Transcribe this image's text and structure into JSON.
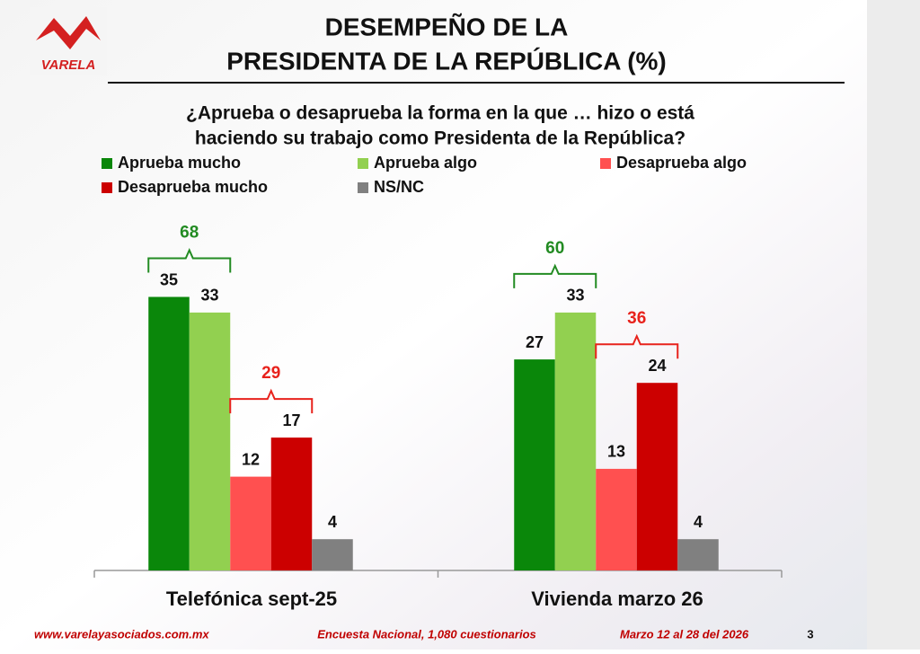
{
  "logo": "VARELA",
  "chart_data": {
    "type": "bar",
    "title": [
      "DESEMPEÑO DE LA",
      "PRESIDENTA DE LA REPÚBLICA (%)"
    ],
    "subtitle": [
      "¿Aprueba o desaprueba la forma en la que … hizo o está",
      "haciendo su trabajo como Presidenta de la República?"
    ],
    "categories": [
      "Telefónica sept-25",
      "Vivienda marzo 26"
    ],
    "series": [
      {
        "name": "Aprueba mucho",
        "color": "#0a870a",
        "values": [
          35,
          27
        ]
      },
      {
        "name": "Aprueba algo",
        "color": "#92d050",
        "values": [
          33,
          33
        ]
      },
      {
        "name": "Desaprueba algo",
        "color": "#ff5050",
        "values": [
          12,
          13
        ]
      },
      {
        "name": "Desaprueba mucho",
        "color": "#cc0000",
        "values": [
          17,
          24
        ]
      },
      {
        "name": "NS/NC",
        "color": "#808080",
        "values": [
          4,
          4
        ]
      }
    ],
    "ylim": [
      0,
      40
    ],
    "group_totals": [
      {
        "values": [
          68,
          60
        ],
        "color": "#228b22"
      },
      {
        "values": [
          29,
          36
        ],
        "color": "#e8221c"
      }
    ]
  },
  "footer": {
    "website": "www.varelayasociados.com.mx",
    "survey": "Encuesta Nacional, 1,080 cuestionarios",
    "dates": "Marzo 12 al 28 del 2026",
    "page": "3"
  }
}
